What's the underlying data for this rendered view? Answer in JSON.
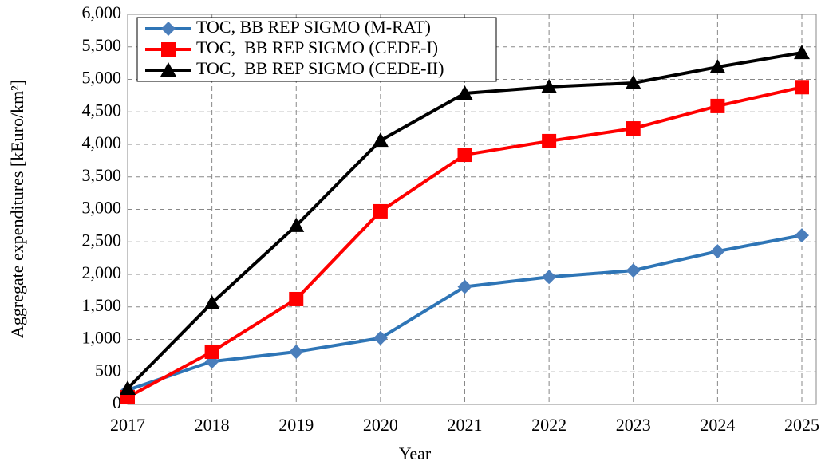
{
  "chart_data": {
    "type": "line",
    "xlabel": "Year",
    "ylabel": "Aggregate expenditures [kEuro/km²]",
    "categories": [
      "2017",
      "2018",
      "2019",
      "2020",
      "2021",
      "2022",
      "2023",
      "2024",
      "2025"
    ],
    "series": [
      {
        "name": "TOC, BB REP SIGMO (M-RAT)",
        "color": "#2e75b6",
        "marker": "diamond",
        "values": [
          220,
          660,
          810,
          1020,
          1810,
          1960,
          2060,
          2355,
          2600
        ]
      },
      {
        "name": "TOC,  BB REP SIGMO (CEDE-I)",
        "color": "#ff0000",
        "marker": "square",
        "values": [
          110,
          810,
          1620,
          2970,
          3840,
          4050,
          4245,
          4590,
          4880
        ]
      },
      {
        "name": "TOC,  BB REP SIGMO (CEDE-II)",
        "color": "#000000",
        "marker": "triangle",
        "values": [
          245,
          1560,
          2750,
          4060,
          4785,
          4885,
          4945,
          5190,
          5410
        ]
      }
    ],
    "ylim": [
      0,
      6000
    ],
    "yticks": [
      0,
      500,
      {
        "value": 1000,
        "label": "1,000"
      },
      {
        "value": 1500,
        "label": "1,500"
      },
      {
        "value": 2000,
        "label": "2,000"
      },
      {
        "value": 2500,
        "label": "2,500"
      },
      {
        "value": 3000,
        "label": "3,000"
      },
      {
        "value": 3500,
        "label": "3,500"
      },
      {
        "value": 4000,
        "label": "4,000"
      },
      {
        "value": 4500,
        "label": "4,500"
      },
      {
        "value": 5000,
        "label": "5,000"
      },
      {
        "value": 5500,
        "label": "5,500"
      },
      {
        "value": 6000,
        "label": "6,000"
      }
    ],
    "grid": true,
    "legend": "upper left"
  }
}
